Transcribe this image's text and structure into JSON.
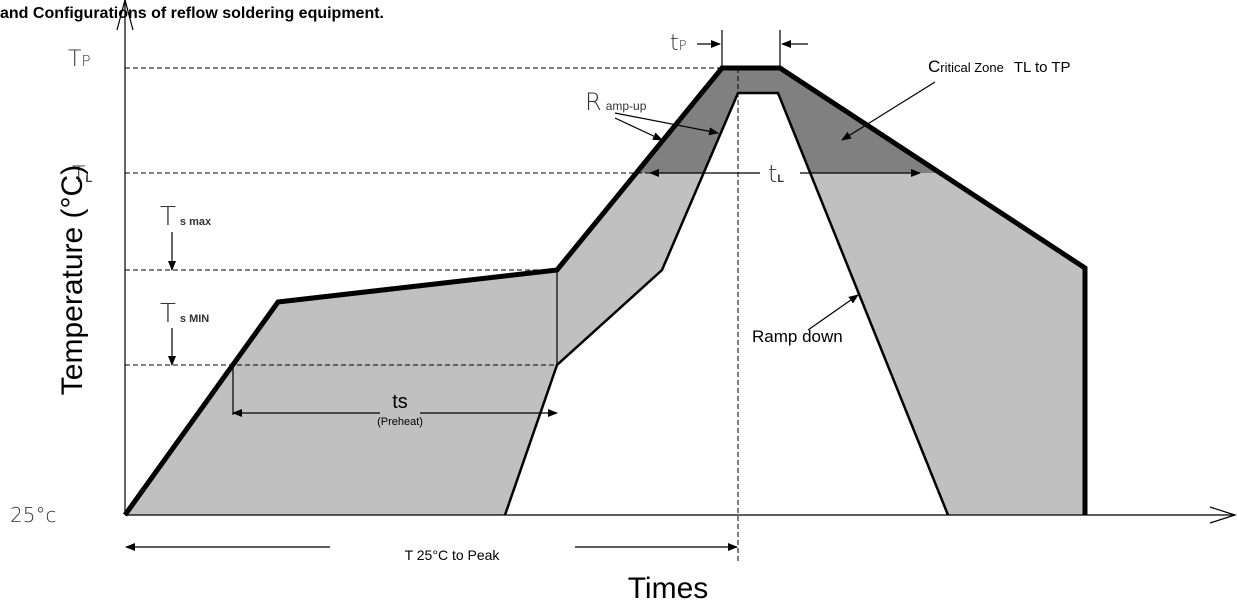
{
  "title": "and Configurations of reflow soldering equipment.",
  "y_axis_label": "Temperature (°C)",
  "x_axis_label": "Times",
  "levels": {
    "tp": {
      "main": "T",
      "sub": "P"
    },
    "tl": {
      "main": "T",
      "sub": "L"
    },
    "ts_max": {
      "main": "T",
      "sub": "s max"
    },
    "ts_min": {
      "main": "T",
      "sub": "s MIN"
    },
    "base": "25°c"
  },
  "annotations": {
    "tp_time": {
      "main": "t",
      "sub": "P"
    },
    "ramp_up": {
      "main": "R",
      "sub": "amp-up"
    },
    "critical_zone": {
      "main": "C",
      "rest": "ritical Zone",
      "range": "TL to TP"
    },
    "tl_time": {
      "main": "t",
      "sub": "L"
    },
    "ts_time": "ts",
    "preheat": "(Preheat)",
    "ramp_down": "Ramp down",
    "t25_to_peak": "T 25°C to Peak"
  }
}
